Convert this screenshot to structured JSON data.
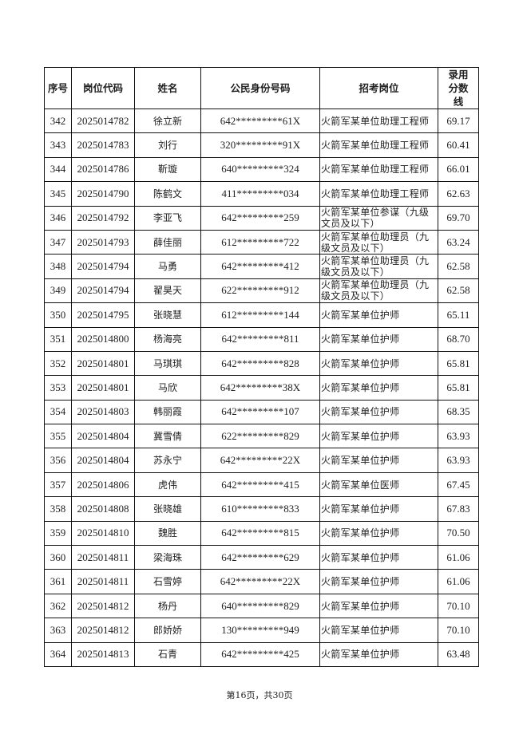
{
  "table": {
    "headers": [
      "序号",
      "岗位代码",
      "姓名",
      "公民身份号码",
      "招考岗位",
      "录用分数线"
    ],
    "rows": [
      [
        "342",
        "2025014782",
        "徐立新",
        "642*********61X",
        "火箭军某单位助理工程师",
        "69.17"
      ],
      [
        "343",
        "2025014783",
        "刘行",
        "320*********91X",
        "火箭军某单位助理工程师",
        "60.41"
      ],
      [
        "344",
        "2025014786",
        "靳璇",
        "640*********324",
        "火箭军某单位助理工程师",
        "66.01"
      ],
      [
        "345",
        "2025014790",
        "陈鹤文",
        "411*********034",
        "火箭军某单位助理工程师",
        "62.63"
      ],
      [
        "346",
        "2025014792",
        "李亚飞",
        "642*********259",
        "火箭军某单位参谋（九级文员及以下）",
        "69.70"
      ],
      [
        "347",
        "2025014793",
        "薛佳丽",
        "612*********722",
        "火箭军某单位助理员（九级文员及以下）",
        "63.24"
      ],
      [
        "348",
        "2025014794",
        "马勇",
        "642*********412",
        "火箭军某单位助理员（九级文员及以下）",
        "62.58"
      ],
      [
        "349",
        "2025014794",
        "翟昊天",
        "622*********912",
        "火箭军某单位助理员（九级文员及以下）",
        "62.58"
      ],
      [
        "350",
        "2025014795",
        "张晓慧",
        "612*********144",
        "火箭军某单位护师",
        "65.11"
      ],
      [
        "351",
        "2025014800",
        "杨海亮",
        "642*********811",
        "火箭军某单位护师",
        "68.70"
      ],
      [
        "352",
        "2025014801",
        "马琪琪",
        "642*********828",
        "火箭军某单位护师",
        "65.81"
      ],
      [
        "353",
        "2025014801",
        "马欣",
        "642*********38X",
        "火箭军某单位护师",
        "65.81"
      ],
      [
        "354",
        "2025014803",
        "韩丽霞",
        "642*********107",
        "火箭军某单位护师",
        "68.35"
      ],
      [
        "355",
        "2025014804",
        "冀雪倩",
        "622*********829",
        "火箭军某单位护师",
        "63.93"
      ],
      [
        "356",
        "2025014804",
        "苏永宁",
        "642*********22X",
        "火箭军某单位护师",
        "63.93"
      ],
      [
        "357",
        "2025014806",
        "虎伟",
        "642*********415",
        "火箭军某单位医师",
        "67.45"
      ],
      [
        "358",
        "2025014808",
        "张晓雄",
        "610*********833",
        "火箭军某单位护师",
        "67.83"
      ],
      [
        "359",
        "2025014810",
        "魏胜",
        "642*********815",
        "火箭军某单位护师",
        "70.50"
      ],
      [
        "360",
        "2025014811",
        "梁海珠",
        "642*********629",
        "火箭军某单位护师",
        "61.06"
      ],
      [
        "361",
        "2025014811",
        "石雪婷",
        "642*********22X",
        "火箭军某单位护师",
        "61.06"
      ],
      [
        "362",
        "2025014812",
        "杨丹",
        "640*********829",
        "火箭军某单位护师",
        "70.10"
      ],
      [
        "363",
        "2025014812",
        "郎娇娇",
        "130*********949",
        "火箭军某单位护师",
        "70.10"
      ],
      [
        "364",
        "2025014813",
        "石青",
        "642*********425",
        "火箭军某单位护师",
        "63.48"
      ]
    ]
  },
  "footer": {
    "page_label": "第16页，共30页"
  }
}
